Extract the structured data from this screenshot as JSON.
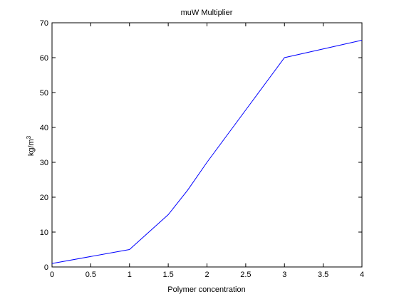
{
  "chart_data": {
    "type": "line",
    "title": "muW Multiplier",
    "xlabel": "Polymer concentration",
    "ylabel": {
      "base": "kg/m",
      "superscript": "3"
    },
    "xlim": [
      0,
      4
    ],
    "ylim": [
      0,
      70
    ],
    "xticks": [
      "0",
      "0.5",
      "1",
      "1.5",
      "2",
      "2.5",
      "3",
      "3.5",
      "4"
    ],
    "yticks": [
      "0",
      "10",
      "20",
      "30",
      "40",
      "50",
      "60",
      "70"
    ],
    "grid": false,
    "series": [
      {
        "color": "#0000ff",
        "x": [
          0,
          1,
          1.25,
          1.5,
          1.75,
          2,
          2.5,
          3,
          4
        ],
        "y": [
          1,
          5,
          10,
          15,
          22,
          30,
          45,
          60,
          65
        ]
      }
    ]
  }
}
